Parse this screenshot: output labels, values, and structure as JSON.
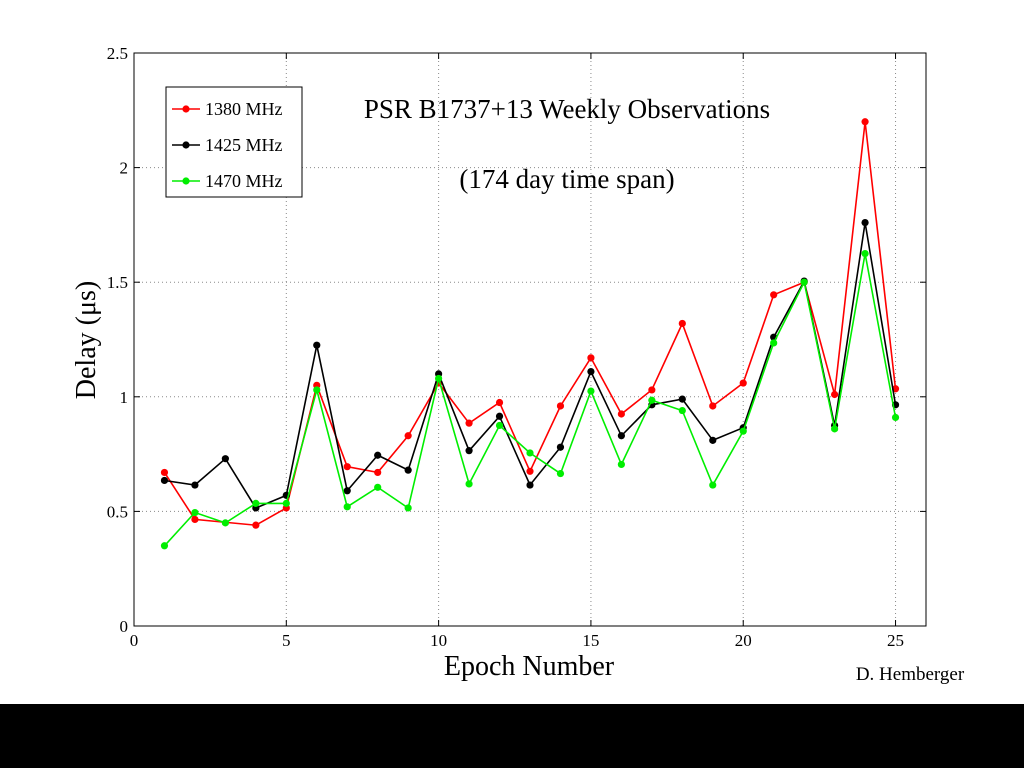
{
  "chart_data": {
    "type": "line",
    "title": "",
    "annotations": [
      "PSR B1737+13 Weekly Observations",
      "(174 day time span)"
    ],
    "xlabel": "Epoch Number",
    "ylabel": "Delay (μs)",
    "credit": "D. Hemberger",
    "xlim": [
      0,
      26
    ],
    "ylim": [
      0,
      2.5
    ],
    "xticks": [
      0,
      5,
      10,
      15,
      20,
      25
    ],
    "yticks": [
      0,
      0.5,
      1,
      1.5,
      2,
      2.5
    ],
    "xtick_labels": [
      "0",
      "5",
      "10",
      "15",
      "20",
      "25"
    ],
    "ytick_labels": [
      "0",
      "0.5",
      "1",
      "1.5",
      "2",
      "2.5"
    ],
    "grid": true,
    "legend_position": "top-left",
    "series": [
      {
        "name": "1380 MHz",
        "color": "#ff0000",
        "points": [
          [
            1,
            0.67
          ],
          [
            2,
            0.465
          ],
          [
            4,
            0.44
          ],
          [
            5,
            0.515
          ],
          [
            6,
            1.05
          ],
          [
            7,
            0.695
          ],
          [
            8,
            0.67
          ],
          [
            9,
            0.83
          ],
          [
            10,
            1.06
          ],
          [
            11,
            0.885
          ],
          [
            12,
            0.975
          ],
          [
            13,
            0.675
          ],
          [
            14,
            0.96
          ],
          [
            15,
            1.17
          ],
          [
            16,
            0.925
          ],
          [
            17,
            1.03
          ],
          [
            18,
            1.32
          ],
          [
            19,
            0.96
          ],
          [
            20,
            1.06
          ],
          [
            21,
            1.445
          ],
          [
            22,
            1.5
          ],
          [
            23,
            1.01
          ],
          [
            24,
            2.2
          ],
          [
            25,
            1.035
          ]
        ]
      },
      {
        "name": "1425 MHz",
        "color": "#000000",
        "points": [
          [
            1,
            0.635
          ],
          [
            2,
            0.615
          ],
          [
            3,
            0.73
          ],
          [
            4,
            0.515
          ],
          [
            5,
            0.57
          ],
          [
            6,
            1.225
          ],
          [
            7,
            0.59
          ],
          [
            8,
            0.745
          ],
          [
            9,
            0.68
          ],
          [
            10,
            1.1
          ],
          [
            11,
            0.765
          ],
          [
            12,
            0.915
          ],
          [
            13,
            0.615
          ],
          [
            14,
            0.78
          ],
          [
            15,
            1.11
          ],
          [
            16,
            0.83
          ],
          [
            17,
            0.965
          ],
          [
            18,
            0.99
          ],
          [
            19,
            0.81
          ],
          [
            20,
            0.865
          ],
          [
            21,
            1.26
          ],
          [
            22,
            1.505
          ],
          [
            23,
            0.875
          ],
          [
            24,
            1.76
          ],
          [
            25,
            0.965
          ]
        ]
      },
      {
        "name": "1470 MHz",
        "color": "#00ee00",
        "points": [
          [
            1,
            0.35
          ],
          [
            2,
            0.495
          ],
          [
            3,
            0.45
          ],
          [
            4,
            0.535
          ],
          [
            5,
            0.535
          ],
          [
            6,
            1.03
          ],
          [
            7,
            0.52
          ],
          [
            8,
            0.605
          ],
          [
            9,
            0.515
          ],
          [
            10,
            1.08
          ],
          [
            11,
            0.62
          ],
          [
            12,
            0.875
          ],
          [
            13,
            0.755
          ],
          [
            14,
            0.665
          ],
          [
            15,
            1.025
          ],
          [
            16,
            0.705
          ],
          [
            17,
            0.985
          ],
          [
            18,
            0.94
          ],
          [
            19,
            0.615
          ],
          [
            20,
            0.85
          ],
          [
            21,
            1.235
          ],
          [
            22,
            1.5
          ],
          [
            23,
            0.86
          ],
          [
            24,
            1.625
          ],
          [
            25,
            0.91
          ]
        ]
      }
    ]
  }
}
